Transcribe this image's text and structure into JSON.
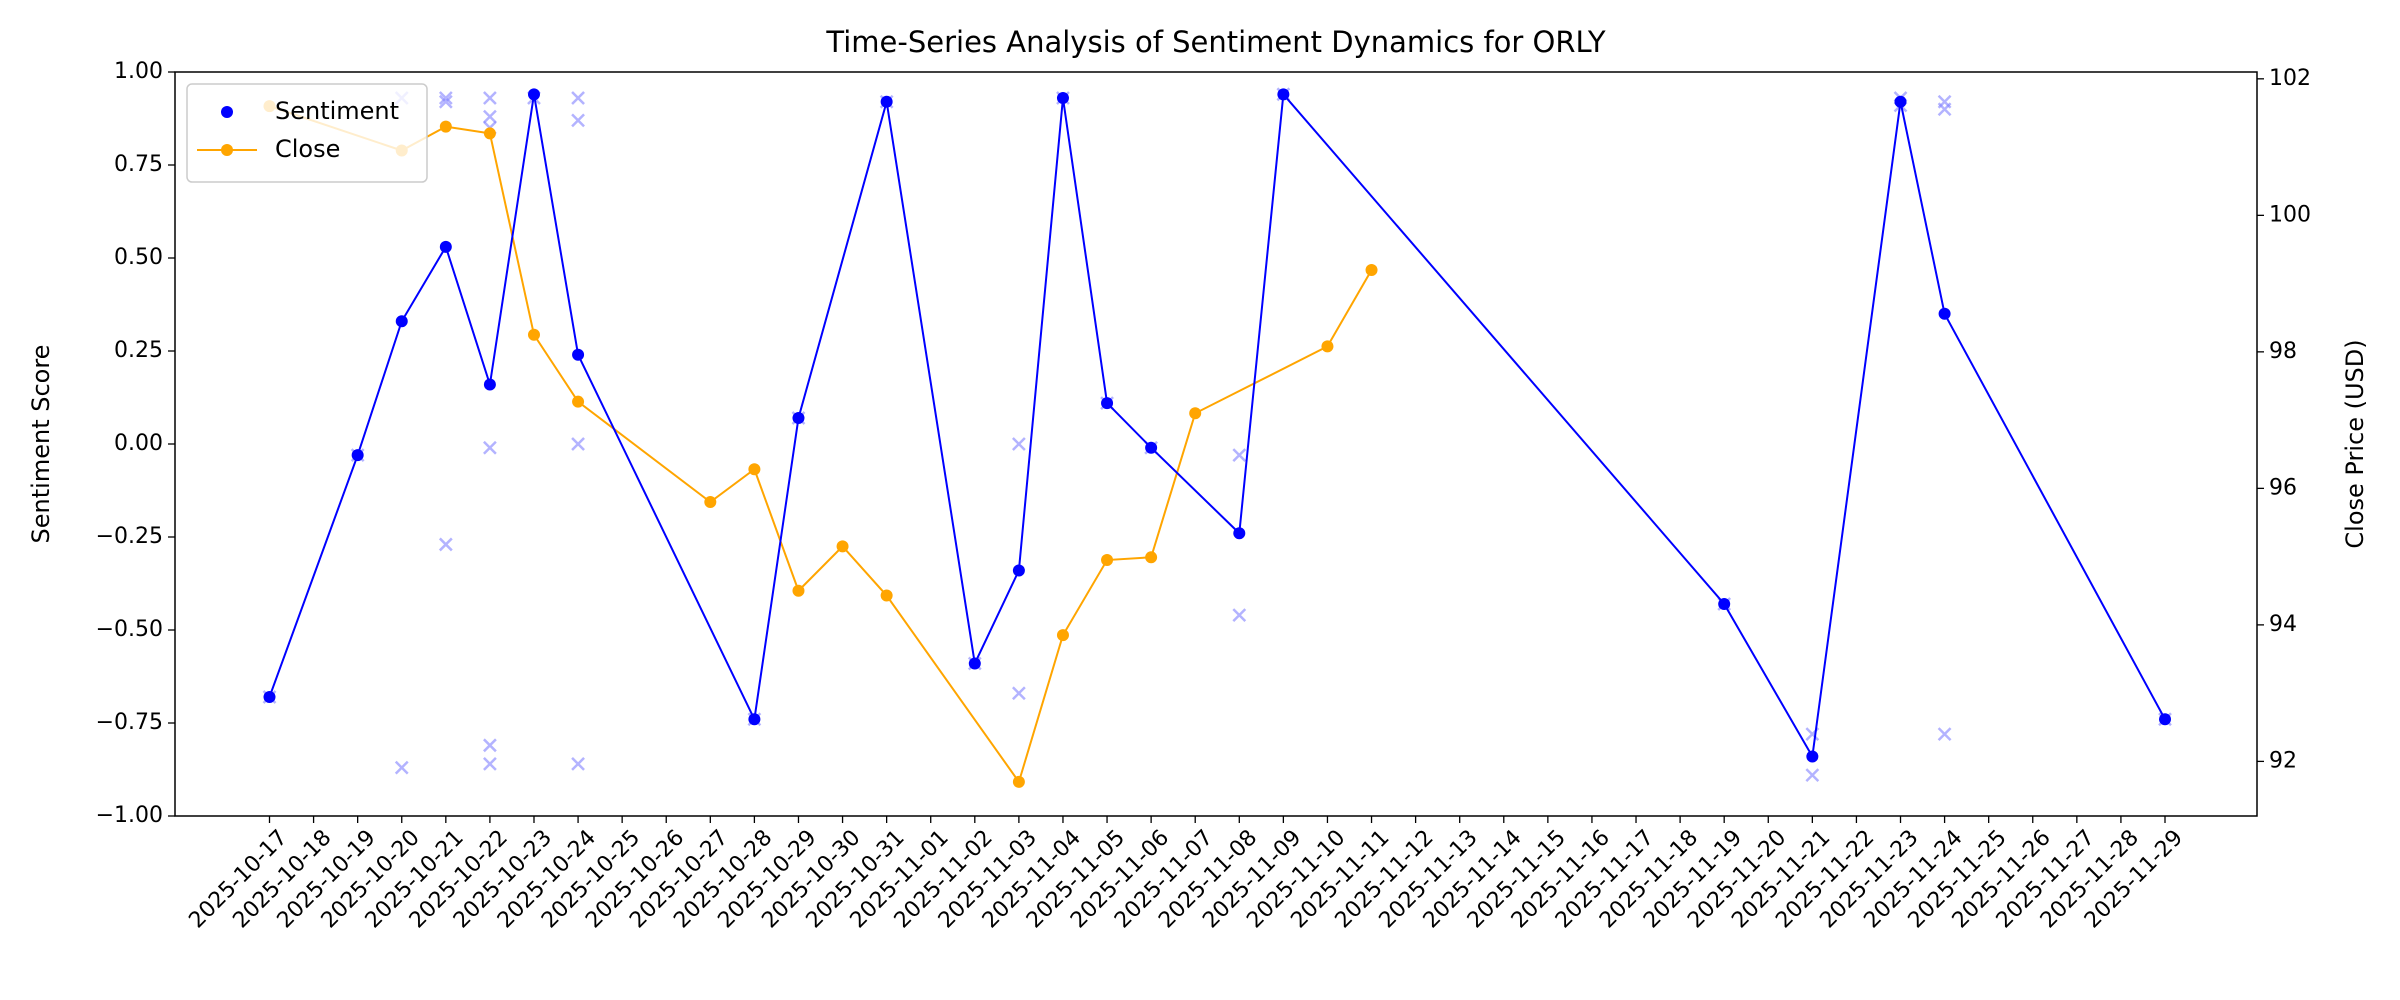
{
  "chart_data": {
    "type": "line",
    "title": "Time-Series Analysis of Sentiment Dynamics for ORLY",
    "y_label": "Sentiment Score",
    "y2_label": "Close Price (USD)",
    "legend": "upper left",
    "xticks": [
      "2025-10-17",
      "2025-10-18",
      "2025-10-19",
      "2025-10-20",
      "2025-10-21",
      "2025-10-22",
      "2025-10-23",
      "2025-10-24",
      "2025-10-25",
      "2025-10-26",
      "2025-10-27",
      "2025-10-28",
      "2025-10-29",
      "2025-10-30",
      "2025-10-31",
      "2025-11-01",
      "2025-11-02",
      "2025-11-03",
      "2025-11-04",
      "2025-11-05",
      "2025-11-06",
      "2025-11-07",
      "2025-11-08",
      "2025-11-09",
      "2025-11-10",
      "2025-11-11",
      "2025-11-12",
      "2025-11-13",
      "2025-11-14",
      "2025-11-15",
      "2025-11-16",
      "2025-11-17",
      "2025-11-18",
      "2025-11-19",
      "2025-11-20",
      "2025-11-21",
      "2025-11-22",
      "2025-11-23",
      "2025-11-24",
      "2025-11-25",
      "2025-11-26",
      "2025-11-27",
      "2025-11-28",
      "2025-11-29"
    ],
    "ylim": [
      -1,
      1
    ],
    "yticks": [
      {
        "value": -1,
        "label": "−1.00"
      },
      {
        "value": -0.75,
        "label": "−0.75"
      },
      {
        "value": -0.5,
        "label": "−0.50"
      },
      {
        "value": -0.25,
        "label": "−0.25"
      },
      {
        "value": 0,
        "label": "0.00"
      },
      {
        "value": 0.25,
        "label": "0.25"
      },
      {
        "value": 0.5,
        "label": "0.50"
      },
      {
        "value": 0.75,
        "label": "0.75"
      },
      {
        "value": 1,
        "label": "1.00"
      }
    ],
    "y2lim": [
      91.2,
      102.1
    ],
    "y2ticks": [
      92,
      94,
      96,
      98,
      100,
      102
    ],
    "series": [
      {
        "name": "Sentiment",
        "color": "blue",
        "legend_style": "marker",
        "x": [
          "2025-10-17",
          "2025-10-19",
          "2025-10-20",
          "2025-10-21",
          "2025-10-22",
          "2025-10-23",
          "2025-10-24",
          "2025-10-28",
          "2025-10-29",
          "2025-10-31",
          "2025-11-02",
          "2025-11-03",
          "2025-11-04",
          "2025-11-05",
          "2025-11-06",
          "2025-11-08",
          "2025-11-09",
          "2025-11-19",
          "2025-11-21",
          "2025-11-23",
          "2025-11-24",
          "2025-11-29"
        ],
        "values": [
          -0.68,
          -0.03,
          0.33,
          0.53,
          0.16,
          0.94,
          0.24,
          -0.74,
          0.07,
          0.92,
          -0.59,
          -0.34,
          0.93,
          0.11,
          -0.01,
          -0.24,
          0.94,
          -0.43,
          -0.84,
          0.92,
          0.35,
          -0.74
        ]
      },
      {
        "name": "Close",
        "color": "orange",
        "axis": "y2",
        "legend_style": "line",
        "x": [
          "2025-10-17",
          "2025-10-20",
          "2025-10-21",
          "2025-10-22",
          "2025-10-23",
          "2025-10-24",
          "2025-10-27",
          "2025-10-28",
          "2025-10-29",
          "2025-10-30",
          "2025-10-31",
          "2025-11-03",
          "2025-11-04",
          "2025-11-05",
          "2025-11-06",
          "2025-11-07",
          "2025-11-10",
          "2025-11-11"
        ],
        "values": [
          101.6,
          100.95,
          101.3,
          101.2,
          98.25,
          97.27,
          95.8,
          96.28,
          94.5,
          95.15,
          94.43,
          91.7,
          93.85,
          94.95,
          94.99,
          97.1,
          98.08,
          99.2
        ]
      },
      {
        "color": "#8080ff",
        "type": "scatter",
        "x": [
          "2025-10-17",
          "2025-10-19",
          "2025-10-20",
          "2025-10-20",
          "2025-10-21",
          "2025-10-21",
          "2025-10-21",
          "2025-10-22",
          "2025-10-22",
          "2025-10-22",
          "2025-10-22",
          "2025-10-22",
          "2025-10-22",
          "2025-10-23",
          "2025-10-24",
          "2025-10-24",
          "2025-10-24",
          "2025-10-24",
          "2025-10-28",
          "2025-10-29",
          "2025-10-31",
          "2025-11-02",
          "2025-11-03",
          "2025-11-03",
          "2025-11-04",
          "2025-11-05",
          "2025-11-06",
          "2025-11-08",
          "2025-11-08",
          "2025-11-09",
          "2025-11-19",
          "2025-11-21",
          "2025-11-21",
          "2025-11-23",
          "2025-11-23",
          "2025-11-24",
          "2025-11-24",
          "2025-11-24",
          "2025-11-29"
        ],
        "values": [
          -0.68,
          -0.03,
          0.93,
          -0.87,
          0.93,
          0.92,
          -0.27,
          0.93,
          0.88,
          0.85,
          -0.01,
          -0.81,
          -0.86,
          0.93,
          0.93,
          0.87,
          0.0,
          -0.86,
          -0.74,
          0.07,
          0.92,
          -0.59,
          0.0,
          -0.67,
          0.93,
          0.11,
          -0.01,
          -0.03,
          -0.46,
          0.94,
          -0.43,
          -0.78,
          -0.89,
          0.93,
          0.91,
          0.92,
          0.9,
          -0.78,
          -0.74
        ]
      }
    ]
  }
}
